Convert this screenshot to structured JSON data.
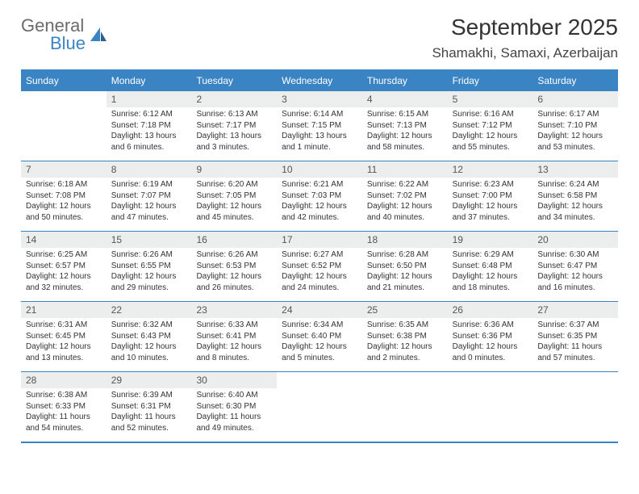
{
  "brand": {
    "word1": "General",
    "word2": "Blue"
  },
  "title": "September 2025",
  "location": "Shamakhi, Samaxi, Azerbaijan",
  "colors": {
    "accent": "#3a84c4",
    "header_bg": "#3a84c4",
    "daynum_bg": "#eceeee",
    "text": "#333333"
  },
  "day_names": [
    "Sunday",
    "Monday",
    "Tuesday",
    "Wednesday",
    "Thursday",
    "Friday",
    "Saturday"
  ],
  "weeks": [
    [
      {
        "n": "",
        "sr": "",
        "ss": "",
        "dl1": "",
        "dl2": "",
        "empty": true
      },
      {
        "n": "1",
        "sr": "Sunrise: 6:12 AM",
        "ss": "Sunset: 7:18 PM",
        "dl1": "Daylight: 13 hours",
        "dl2": "and 6 minutes."
      },
      {
        "n": "2",
        "sr": "Sunrise: 6:13 AM",
        "ss": "Sunset: 7:17 PM",
        "dl1": "Daylight: 13 hours",
        "dl2": "and 3 minutes."
      },
      {
        "n": "3",
        "sr": "Sunrise: 6:14 AM",
        "ss": "Sunset: 7:15 PM",
        "dl1": "Daylight: 13 hours",
        "dl2": "and 1 minute."
      },
      {
        "n": "4",
        "sr": "Sunrise: 6:15 AM",
        "ss": "Sunset: 7:13 PM",
        "dl1": "Daylight: 12 hours",
        "dl2": "and 58 minutes."
      },
      {
        "n": "5",
        "sr": "Sunrise: 6:16 AM",
        "ss": "Sunset: 7:12 PM",
        "dl1": "Daylight: 12 hours",
        "dl2": "and 55 minutes."
      },
      {
        "n": "6",
        "sr": "Sunrise: 6:17 AM",
        "ss": "Sunset: 7:10 PM",
        "dl1": "Daylight: 12 hours",
        "dl2": "and 53 minutes."
      }
    ],
    [
      {
        "n": "7",
        "sr": "Sunrise: 6:18 AM",
        "ss": "Sunset: 7:08 PM",
        "dl1": "Daylight: 12 hours",
        "dl2": "and 50 minutes."
      },
      {
        "n": "8",
        "sr": "Sunrise: 6:19 AM",
        "ss": "Sunset: 7:07 PM",
        "dl1": "Daylight: 12 hours",
        "dl2": "and 47 minutes."
      },
      {
        "n": "9",
        "sr": "Sunrise: 6:20 AM",
        "ss": "Sunset: 7:05 PM",
        "dl1": "Daylight: 12 hours",
        "dl2": "and 45 minutes."
      },
      {
        "n": "10",
        "sr": "Sunrise: 6:21 AM",
        "ss": "Sunset: 7:03 PM",
        "dl1": "Daylight: 12 hours",
        "dl2": "and 42 minutes."
      },
      {
        "n": "11",
        "sr": "Sunrise: 6:22 AM",
        "ss": "Sunset: 7:02 PM",
        "dl1": "Daylight: 12 hours",
        "dl2": "and 40 minutes."
      },
      {
        "n": "12",
        "sr": "Sunrise: 6:23 AM",
        "ss": "Sunset: 7:00 PM",
        "dl1": "Daylight: 12 hours",
        "dl2": "and 37 minutes."
      },
      {
        "n": "13",
        "sr": "Sunrise: 6:24 AM",
        "ss": "Sunset: 6:58 PM",
        "dl1": "Daylight: 12 hours",
        "dl2": "and 34 minutes."
      }
    ],
    [
      {
        "n": "14",
        "sr": "Sunrise: 6:25 AM",
        "ss": "Sunset: 6:57 PM",
        "dl1": "Daylight: 12 hours",
        "dl2": "and 32 minutes."
      },
      {
        "n": "15",
        "sr": "Sunrise: 6:26 AM",
        "ss": "Sunset: 6:55 PM",
        "dl1": "Daylight: 12 hours",
        "dl2": "and 29 minutes."
      },
      {
        "n": "16",
        "sr": "Sunrise: 6:26 AM",
        "ss": "Sunset: 6:53 PM",
        "dl1": "Daylight: 12 hours",
        "dl2": "and 26 minutes."
      },
      {
        "n": "17",
        "sr": "Sunrise: 6:27 AM",
        "ss": "Sunset: 6:52 PM",
        "dl1": "Daylight: 12 hours",
        "dl2": "and 24 minutes."
      },
      {
        "n": "18",
        "sr": "Sunrise: 6:28 AM",
        "ss": "Sunset: 6:50 PM",
        "dl1": "Daylight: 12 hours",
        "dl2": "and 21 minutes."
      },
      {
        "n": "19",
        "sr": "Sunrise: 6:29 AM",
        "ss": "Sunset: 6:48 PM",
        "dl1": "Daylight: 12 hours",
        "dl2": "and 18 minutes."
      },
      {
        "n": "20",
        "sr": "Sunrise: 6:30 AM",
        "ss": "Sunset: 6:47 PM",
        "dl1": "Daylight: 12 hours",
        "dl2": "and 16 minutes."
      }
    ],
    [
      {
        "n": "21",
        "sr": "Sunrise: 6:31 AM",
        "ss": "Sunset: 6:45 PM",
        "dl1": "Daylight: 12 hours",
        "dl2": "and 13 minutes."
      },
      {
        "n": "22",
        "sr": "Sunrise: 6:32 AM",
        "ss": "Sunset: 6:43 PM",
        "dl1": "Daylight: 12 hours",
        "dl2": "and 10 minutes."
      },
      {
        "n": "23",
        "sr": "Sunrise: 6:33 AM",
        "ss": "Sunset: 6:41 PM",
        "dl1": "Daylight: 12 hours",
        "dl2": "and 8 minutes."
      },
      {
        "n": "24",
        "sr": "Sunrise: 6:34 AM",
        "ss": "Sunset: 6:40 PM",
        "dl1": "Daylight: 12 hours",
        "dl2": "and 5 minutes."
      },
      {
        "n": "25",
        "sr": "Sunrise: 6:35 AM",
        "ss": "Sunset: 6:38 PM",
        "dl1": "Daylight: 12 hours",
        "dl2": "and 2 minutes."
      },
      {
        "n": "26",
        "sr": "Sunrise: 6:36 AM",
        "ss": "Sunset: 6:36 PM",
        "dl1": "Daylight: 12 hours",
        "dl2": "and 0 minutes."
      },
      {
        "n": "27",
        "sr": "Sunrise: 6:37 AM",
        "ss": "Sunset: 6:35 PM",
        "dl1": "Daylight: 11 hours",
        "dl2": "and 57 minutes."
      }
    ],
    [
      {
        "n": "28",
        "sr": "Sunrise: 6:38 AM",
        "ss": "Sunset: 6:33 PM",
        "dl1": "Daylight: 11 hours",
        "dl2": "and 54 minutes."
      },
      {
        "n": "29",
        "sr": "Sunrise: 6:39 AM",
        "ss": "Sunset: 6:31 PM",
        "dl1": "Daylight: 11 hours",
        "dl2": "and 52 minutes."
      },
      {
        "n": "30",
        "sr": "Sunrise: 6:40 AM",
        "ss": "Sunset: 6:30 PM",
        "dl1": "Daylight: 11 hours",
        "dl2": "and 49 minutes."
      },
      {
        "n": "",
        "sr": "",
        "ss": "",
        "dl1": "",
        "dl2": "",
        "empty": true
      },
      {
        "n": "",
        "sr": "",
        "ss": "",
        "dl1": "",
        "dl2": "",
        "empty": true
      },
      {
        "n": "",
        "sr": "",
        "ss": "",
        "dl1": "",
        "dl2": "",
        "empty": true
      },
      {
        "n": "",
        "sr": "",
        "ss": "",
        "dl1": "",
        "dl2": "",
        "empty": true
      }
    ]
  ]
}
